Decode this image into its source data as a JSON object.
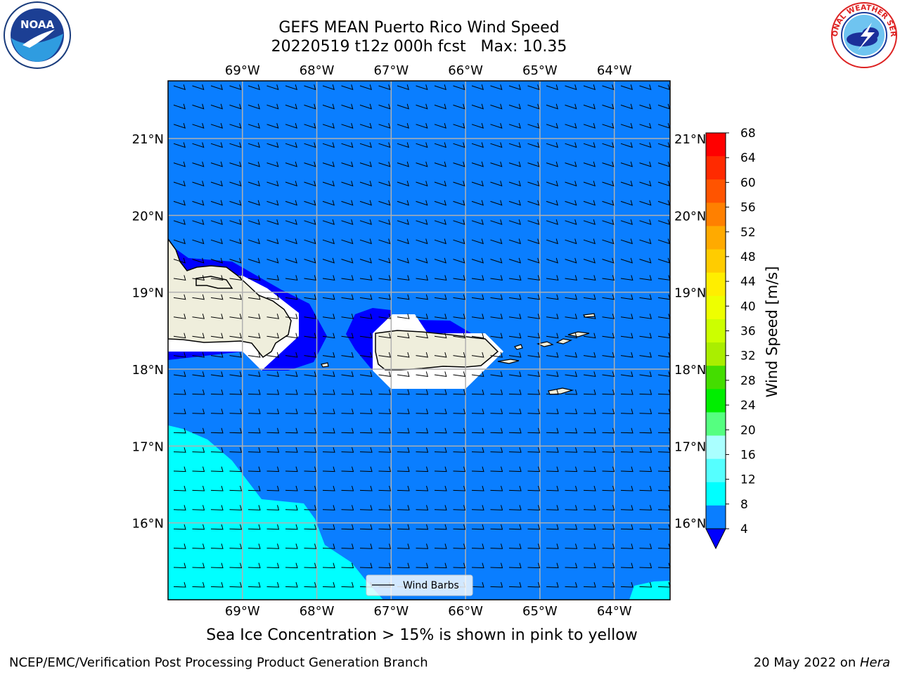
{
  "title": {
    "line1": "GEFS MEAN Puerto Rico Wind Speed",
    "line2": "20220519 t12z 000h fcst   Max: 10.35"
  },
  "map": {
    "lon_labels": [
      "69°W",
      "68°W",
      "67°W",
      "66°W",
      "65°W",
      "64°W"
    ],
    "lat_labels": [
      "21°N",
      "20°N",
      "19°N",
      "18°N",
      "17°N",
      "16°N"
    ],
    "lon_range": [
      -70.0,
      -63.25
    ],
    "lat_range": [
      15.0,
      21.75
    ],
    "legend_label": "Wind Barbs",
    "colors": {
      "ocean_4_8": "#0a7eff",
      "below_4": "#0000ff",
      "band_8_12": "#00ffff",
      "land": "#efeedc",
      "grid": "#b0b0b0"
    }
  },
  "colorbar": {
    "label": "Wind Speed [m/s]",
    "ticks": [
      "68",
      "64",
      "60",
      "56",
      "52",
      "48",
      "44",
      "40",
      "36",
      "32",
      "28",
      "24",
      "20",
      "16",
      "12",
      "8",
      "4"
    ],
    "colors": [
      "#ff0000",
      "#ff2a00",
      "#ff5400",
      "#ff8000",
      "#ffaa00",
      "#ffcc00",
      "#ffee00",
      "#eeff00",
      "#ccff00",
      "#aaee00",
      "#44dd00",
      "#00ee00",
      "#55ff80",
      "#aaffff",
      "#55ffff",
      "#00ffff",
      "#0a7eff"
    ],
    "under_color": "#0000ff"
  },
  "footnote": "Sea Ice Concentration > 15% is shown in pink to yellow",
  "credit_left": "NCEP/EMC/Verification Post Processing Product Generation Branch",
  "credit_date": "20 May 2022 on ",
  "credit_host": "Hera",
  "logos": {
    "noaa_text": "NOAA",
    "nws_text": "NATIONAL WEATHER SERVICE"
  }
}
